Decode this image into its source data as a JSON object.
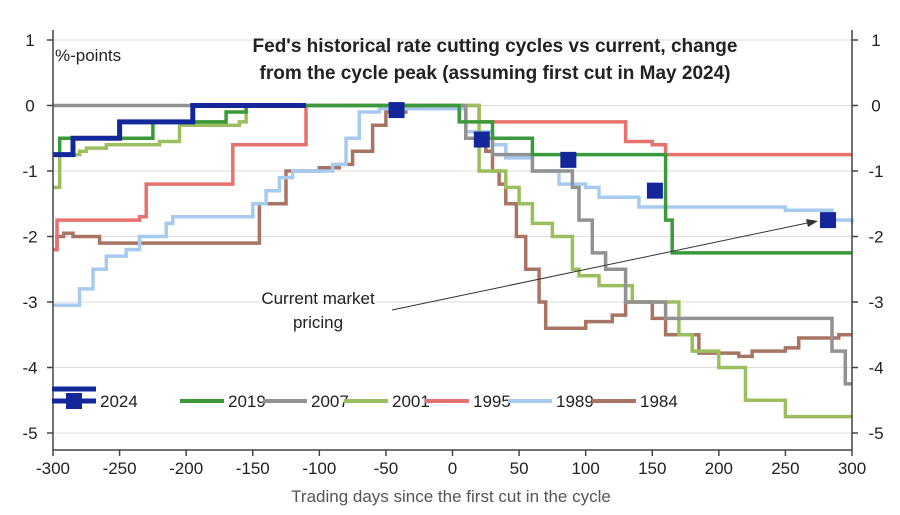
{
  "chart_data": {
    "type": "line",
    "title_lines": [
      "Fed's historical rate cutting cycles vs current, change",
      "from the cycle peak (assuming first cut in May 2024)"
    ],
    "ylabel_unit": "%-points",
    "xlabel": "Trading days since the first cut in the cycle",
    "xlim": [
      -300,
      300
    ],
    "ylim": [
      -5.1,
      1.2
    ],
    "xticks": [
      -300,
      -250,
      -200,
      -150,
      -100,
      -50,
      0,
      50,
      100,
      150,
      200,
      250,
      300
    ],
    "yticks": [
      1,
      0,
      -1,
      -2,
      -3,
      -4,
      -5
    ],
    "annotation": [
      "Current market",
      "pricing"
    ],
    "legend_placement": "bottom-left",
    "series": [
      {
        "name": "1984",
        "color": "#a87564",
        "points": [
          [
            -300,
            -2.2
          ],
          [
            -297,
            -2.0
          ],
          [
            -292,
            -1.95
          ],
          [
            -285,
            -2.0
          ],
          [
            -265,
            -2.1
          ],
          [
            -150,
            -2.1
          ],
          [
            -145,
            -1.5
          ],
          [
            -125,
            -1.0
          ],
          [
            -100,
            -0.95
          ],
          [
            -85,
            -0.9
          ],
          [
            -75,
            -0.7
          ],
          [
            -60,
            -0.3
          ],
          [
            -50,
            -0.1
          ],
          [
            -35,
            -0.05
          ],
          [
            0,
            -0.05
          ],
          [
            10,
            -0.5
          ],
          [
            25,
            -0.7
          ],
          [
            30,
            -1.0
          ],
          [
            35,
            -1.2
          ],
          [
            40,
            -1.5
          ],
          [
            48,
            -2.0
          ],
          [
            55,
            -2.5
          ],
          [
            65,
            -3.0
          ],
          [
            70,
            -3.4
          ],
          [
            100,
            -3.3
          ],
          [
            120,
            -3.2
          ],
          [
            130,
            -3.0
          ],
          [
            150,
            -3.25
          ],
          [
            160,
            -3.5
          ],
          [
            175,
            -3.5
          ],
          [
            185,
            -3.78
          ],
          [
            205,
            -3.78
          ],
          [
            215,
            -3.83
          ],
          [
            225,
            -3.75
          ],
          [
            250,
            -3.7
          ],
          [
            260,
            -3.55
          ],
          [
            275,
            -3.55
          ],
          [
            290,
            -3.5
          ],
          [
            300,
            -3.5
          ]
        ]
      },
      {
        "name": "1989",
        "color": "#a6cbef",
        "points": [
          [
            -300,
            -3.05
          ],
          [
            -290,
            -3.05
          ],
          [
            -280,
            -2.8
          ],
          [
            -270,
            -2.5
          ],
          [
            -260,
            -2.3
          ],
          [
            -245,
            -2.2
          ],
          [
            -235,
            -2.0
          ],
          [
            -215,
            -1.8
          ],
          [
            -210,
            -1.7
          ],
          [
            -170,
            -1.7
          ],
          [
            -150,
            -1.5
          ],
          [
            -140,
            -1.3
          ],
          [
            -130,
            -1.1
          ],
          [
            -120,
            -1.0
          ],
          [
            -100,
            -1.0
          ],
          [
            -90,
            -0.9
          ],
          [
            -80,
            -0.5
          ],
          [
            -70,
            -0.1
          ],
          [
            -55,
            -0.05
          ],
          [
            0,
            -0.05
          ],
          [
            10,
            -0.4
          ],
          [
            30,
            -0.6
          ],
          [
            40,
            -0.8
          ],
          [
            60,
            -1.0
          ],
          [
            80,
            -1.2
          ],
          [
            100,
            -1.25
          ],
          [
            110,
            -1.4
          ],
          [
            140,
            -1.55
          ],
          [
            190,
            -1.55
          ],
          [
            250,
            -1.6
          ],
          [
            285,
            -1.75
          ],
          [
            300,
            -1.8
          ]
        ]
      },
      {
        "name": "1995",
        "color": "#e7716c",
        "points": [
          [
            -300,
            -2.2
          ],
          [
            -297,
            -1.75
          ],
          [
            -270,
            -1.75
          ],
          [
            -235,
            -1.7
          ],
          [
            -230,
            -1.2
          ],
          [
            -170,
            -1.2
          ],
          [
            -165,
            -0.6
          ],
          [
            -120,
            -0.6
          ],
          [
            -110,
            -0.5
          ],
          [
            -110,
            0
          ],
          [
            0,
            0
          ],
          [
            20,
            -0.25
          ],
          [
            90,
            -0.25
          ],
          [
            120,
            -0.25
          ],
          [
            130,
            -0.55
          ],
          [
            150,
            -0.6
          ],
          [
            160,
            -0.75
          ],
          [
            300,
            -0.75
          ]
        ]
      },
      {
        "name": "2001",
        "color": "#9bbf5f",
        "points": [
          [
            -300,
            -1.25
          ],
          [
            -295,
            -0.75
          ],
          [
            -290,
            -0.75
          ],
          [
            -280,
            -0.7
          ],
          [
            -275,
            -0.65
          ],
          [
            -260,
            -0.6
          ],
          [
            -220,
            -0.55
          ],
          [
            -205,
            -0.3
          ],
          [
            -160,
            -0.25
          ],
          [
            -155,
            0
          ],
          [
            0,
            0
          ],
          [
            20,
            -1.0
          ],
          [
            40,
            -1.25
          ],
          [
            50,
            -1.5
          ],
          [
            60,
            -1.8
          ],
          [
            75,
            -2.0
          ],
          [
            90,
            -2.5
          ],
          [
            95,
            -2.6
          ],
          [
            110,
            -2.75
          ],
          [
            135,
            -3.0
          ],
          [
            170,
            -3.5
          ],
          [
            180,
            -3.75
          ],
          [
            200,
            -4.0
          ],
          [
            220,
            -4.5
          ],
          [
            250,
            -4.75
          ],
          [
            300,
            -4.75
          ]
        ]
      },
      {
        "name": "2007",
        "color": "#929292",
        "points": [
          [
            -300,
            0
          ],
          [
            0,
            0
          ],
          [
            10,
            -0.5
          ],
          [
            30,
            -0.75
          ],
          [
            60,
            -1.0
          ],
          [
            90,
            -1.25
          ],
          [
            95,
            -1.75
          ],
          [
            105,
            -2.25
          ],
          [
            115,
            -2.5
          ],
          [
            130,
            -3.0
          ],
          [
            150,
            -3.0
          ],
          [
            160,
            -3.25
          ],
          [
            280,
            -3.25
          ],
          [
            285,
            -3.75
          ],
          [
            295,
            -4.25
          ],
          [
            300,
            -4.25
          ]
        ]
      },
      {
        "name": "2019",
        "color": "#3a9a3a",
        "points": [
          [
            -300,
            -0.75
          ],
          [
            -295,
            -0.5
          ],
          [
            -240,
            -0.5
          ],
          [
            -225,
            -0.25
          ],
          [
            -175,
            -0.25
          ],
          [
            -170,
            -0.1
          ],
          [
            -155,
            0
          ],
          [
            0,
            0
          ],
          [
            5,
            -0.25
          ],
          [
            30,
            -0.5
          ],
          [
            45,
            -0.5
          ],
          [
            60,
            -0.75
          ],
          [
            100,
            -0.75
          ],
          [
            155,
            -0.75
          ],
          [
            160,
            -1.75
          ],
          [
            165,
            -2.25
          ],
          [
            300,
            -2.25
          ]
        ]
      },
      {
        "name": "2024",
        "color": "#13279a",
        "points": [
          [
            -300,
            -0.75
          ],
          [
            -290,
            -0.75
          ],
          [
            -285,
            -0.5
          ],
          [
            -260,
            -0.5
          ],
          [
            -250,
            -0.25
          ],
          [
            -200,
            -0.25
          ],
          [
            -195,
            0
          ],
          [
            -110,
            0
          ]
        ],
        "markers": [
          [
            -42,
            -0.07
          ],
          [
            22,
            -0.52
          ],
          [
            87,
            -0.83
          ],
          [
            152,
            -1.3
          ],
          [
            282,
            -1.75
          ]
        ]
      }
    ]
  }
}
